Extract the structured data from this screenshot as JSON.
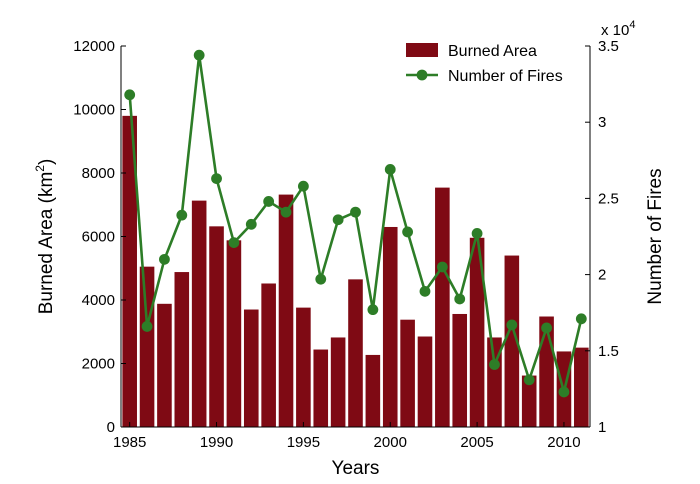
{
  "chart_data": {
    "type": "bar+line",
    "x": [
      1985,
      1986,
      1987,
      1988,
      1989,
      1990,
      1991,
      1992,
      1993,
      1994,
      1995,
      1996,
      1997,
      1998,
      1999,
      2000,
      2001,
      2002,
      2003,
      2004,
      2005,
      2006,
      2007,
      2008,
      2009,
      2010,
      2011
    ],
    "x_ticks": [
      1985,
      1990,
      1995,
      2000,
      2005,
      2010
    ],
    "xlabel": "Years",
    "ylabel_left": {
      "main": "Burned Area (km",
      "sup": "2",
      "tail": ")"
    },
    "ylabel_right": "Number of Fires",
    "left_axis": {
      "ylim": [
        0,
        12000
      ],
      "ticks": [
        0,
        2000,
        4000,
        6000,
        8000,
        10000,
        12000
      ]
    },
    "right_axis": {
      "ylim": [
        1,
        3.5
      ],
      "ticks": [
        1,
        1.5,
        2,
        2.5,
        3,
        3.5
      ],
      "tick_labels": [
        "1",
        "1.5",
        "2",
        "2.5",
        "3",
        "3.5"
      ],
      "multiplier": {
        "base": "x 10",
        "exp": "4"
      }
    },
    "series": [
      {
        "name": "Burned Area",
        "kind": "bar",
        "axis": "left",
        "color": "#7f0a14",
        "values": [
          9800,
          5050,
          3880,
          4880,
          7130,
          6320,
          5880,
          3700,
          4520,
          7320,
          3760,
          2440,
          2820,
          4650,
          2270,
          6300,
          3380,
          2850,
          7540,
          3560,
          5960,
          2820,
          5400,
          1620,
          3480,
          2380,
          2500
        ]
      },
      {
        "name": "Number of Fires",
        "kind": "line",
        "axis": "right",
        "color": "#2d7d27",
        "values": [
          3.18,
          1.66,
          2.1,
          2.39,
          3.44,
          2.63,
          2.21,
          2.33,
          2.48,
          2.41,
          2.58,
          1.97,
          2.36,
          2.41,
          1.77,
          2.69,
          2.28,
          1.89,
          2.05,
          1.84,
          2.27,
          1.41,
          1.67,
          1.31,
          1.65,
          1.23,
          1.71
        ]
      }
    ],
    "legend_position": "top-right",
    "grid": false
  }
}
